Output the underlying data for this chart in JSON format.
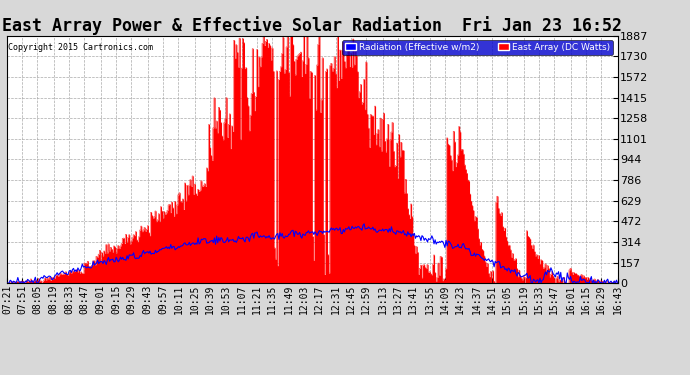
{
  "title": "East Array Power & Effective Solar Radiation  Fri Jan 23 16:52",
  "copyright": "Copyright 2015 Cartronics.com",
  "legend_labels": [
    "Radiation (Effective w/m2)",
    "East Array (DC Watts)"
  ],
  "legend_colors": [
    "blue",
    "red"
  ],
  "ymax": 1887.0,
  "ymin": 0.0,
  "yticks": [
    0.0,
    157.2,
    314.5,
    471.7,
    629.0,
    786.2,
    943.5,
    1100.7,
    1258.0,
    1415.2,
    1572.5,
    1729.7,
    1887.0
  ],
  "background_color": "#d8d8d8",
  "plot_bg_color": "#ffffff",
  "grid_color": "#aaaaaa",
  "bar_color": "#ff0000",
  "line_color": "#0000ff",
  "title_fontsize": 12,
  "tick_fontsize": 7,
  "x_labels": [
    "07:21",
    "07:51",
    "08:05",
    "08:19",
    "08:33",
    "08:47",
    "09:01",
    "09:15",
    "09:29",
    "09:43",
    "09:57",
    "10:11",
    "10:25",
    "10:39",
    "10:53",
    "11:07",
    "11:21",
    "11:35",
    "11:49",
    "12:03",
    "12:17",
    "12:31",
    "12:45",
    "12:59",
    "13:13",
    "13:27",
    "13:41",
    "13:55",
    "14:09",
    "14:23",
    "14:37",
    "14:51",
    "15:05",
    "15:19",
    "15:33",
    "15:47",
    "16:01",
    "16:15",
    "16:29",
    "16:43"
  ],
  "n_points": 560
}
